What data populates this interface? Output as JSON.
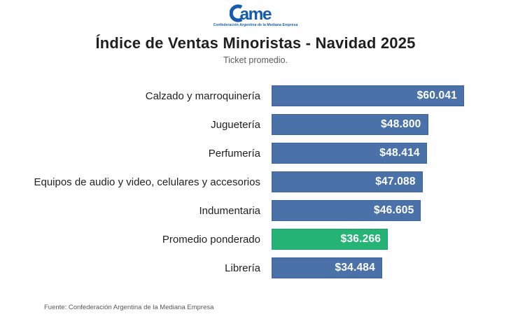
{
  "logo": {
    "wordmark": "Came",
    "tagline": "Confederación Argentina de la Mediana Empresa",
    "color": "#155CB0"
  },
  "header": {
    "title": "Índice de Ventas Minoristas - Navidad 2025",
    "subtitle": "Ticket promedio."
  },
  "chart_data": {
    "type": "bar",
    "orientation": "horizontal",
    "title": "Índice de Ventas Minoristas - Navidad 2025",
    "subtitle": "Ticket promedio.",
    "categories": [
      "Calzado y marroquinería",
      "Juguetería",
      "Perfumería",
      "Equipos de audio y video, celulares y accesorios",
      "Indumentaria",
      "Promedio ponderado",
      "Librería"
    ],
    "values": [
      60041,
      48800,
      48414,
      47088,
      46605,
      36266,
      34484
    ],
    "value_labels": [
      "$60.041",
      "$48.800",
      "$48.414",
      "$47.088",
      "$46.605",
      "$36.266",
      "$34.484"
    ],
    "highlight_index": 5,
    "colors": {
      "bar": "#4A72A8",
      "bar_border": "#3E649D",
      "highlight": "#26B376",
      "highlight_border": "#14A566",
      "value_text": "#FFFFFF"
    },
    "xlim": [
      0,
      60041
    ],
    "grid": false,
    "legend": false
  },
  "footer": {
    "source": "Fuente: Confederación Argentina de la Mediana Empresa"
  }
}
